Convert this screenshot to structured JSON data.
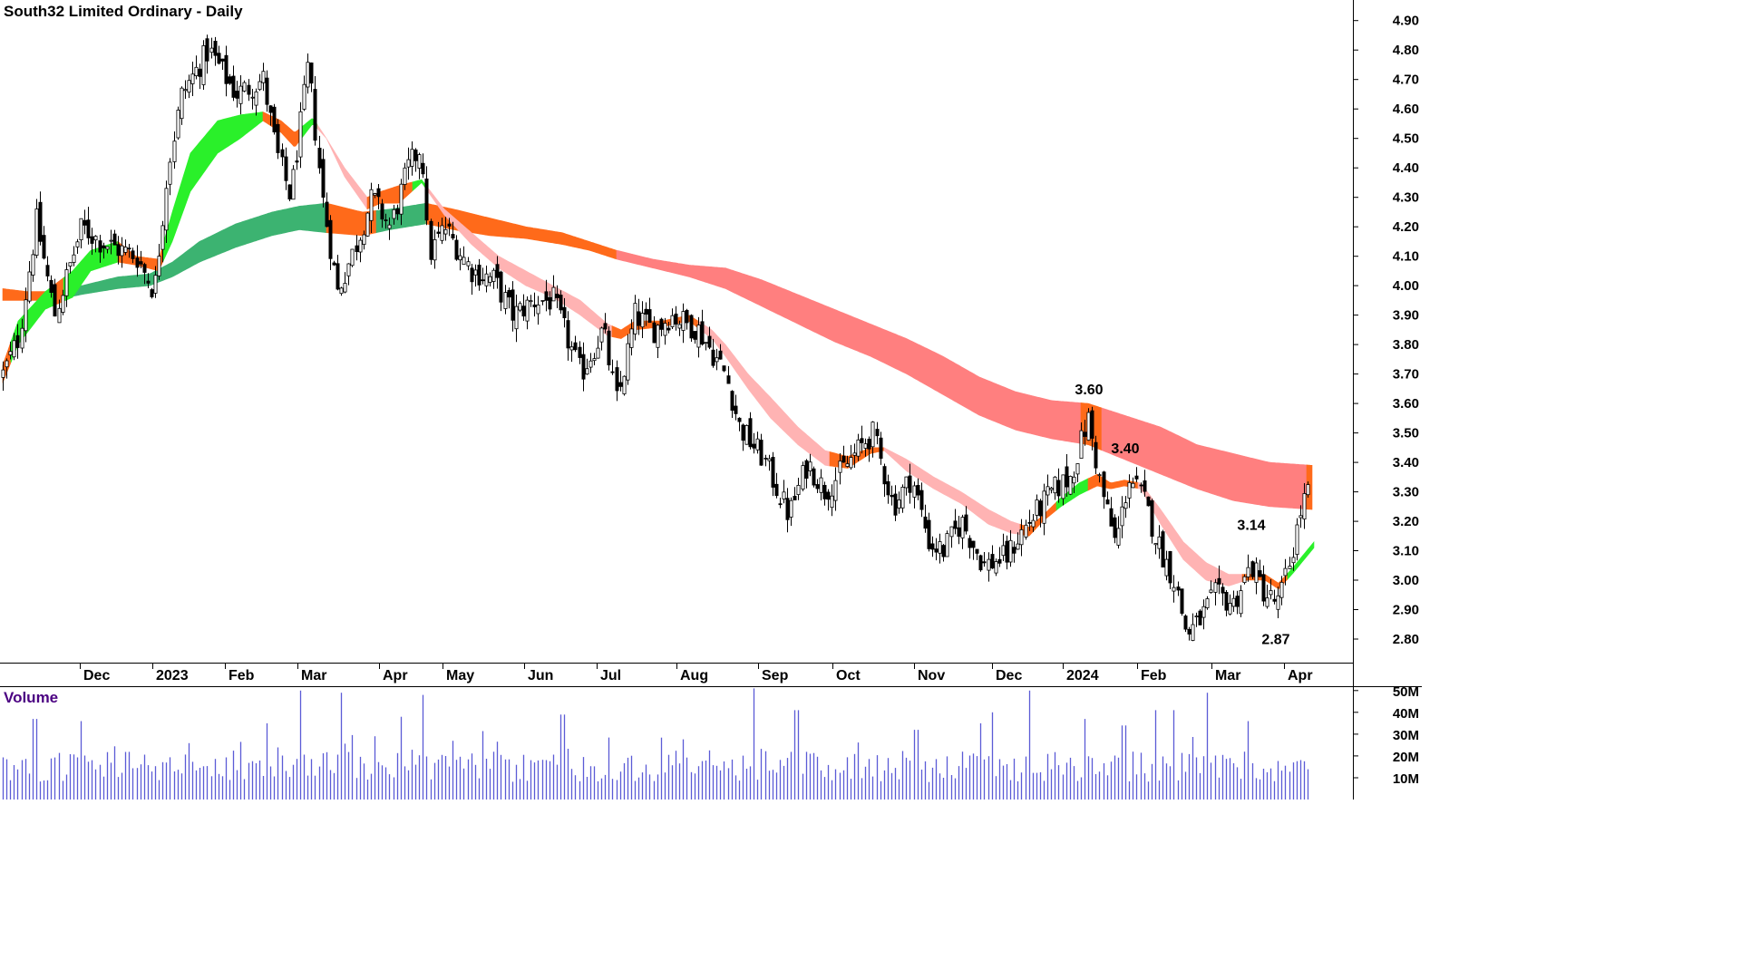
{
  "title": "South32 Limited Ordinary - Daily",
  "colors": {
    "fast_up": "#2af02a",
    "fast_down": "#ffb3b3",
    "mixed": "#ff6a1a",
    "slow_up": "#3cb371",
    "slow_down": "#ff7f7f",
    "volume": "#5b5bd6",
    "volume_title": "#4b0082"
  },
  "chart_data": [
    {
      "type": "candlestick",
      "title": "South32 Limited Ordinary - Daily",
      "ylim": [
        2.72,
        4.97
      ],
      "yticks": [
        2.8,
        2.9,
        3.0,
        3.1,
        3.2,
        3.3,
        3.4,
        3.5,
        3.6,
        3.7,
        3.8,
        3.9,
        4.0,
        4.1,
        4.2,
        4.3,
        4.4,
        4.5,
        4.6,
        4.7,
        4.8,
        4.9
      ],
      "month_labels": [
        "Dec",
        "2023",
        "Feb",
        "Mar",
        "Apr",
        "May",
        "Jun",
        "Jul",
        "Aug",
        "Sep",
        "Oct",
        "Nov",
        "Dec",
        "2024",
        "Feb",
        "Mar",
        "Apr"
      ],
      "month_ticks": [
        88,
        168,
        248,
        328,
        418,
        488,
        578,
        658,
        746,
        836,
        918,
        1008,
        1094,
        1172,
        1254,
        1336,
        1416
      ],
      "annotations": [
        {
          "label": "3.60",
          "x": 1201,
          "value": 3.6
        },
        {
          "label": "3.40",
          "x": 1241,
          "value": 3.4
        },
        {
          "label": "3.14",
          "x": 1380,
          "value": 3.14
        },
        {
          "label": "2.87",
          "x": 1407,
          "value": 2.87
        }
      ],
      "close_anchors": [
        [
          3,
          3.7
        ],
        [
          20,
          3.82
        ],
        [
          40,
          4.22
        ],
        [
          60,
          3.9
        ],
        [
          90,
          4.2
        ],
        [
          110,
          4.15
        ],
        [
          150,
          4.1
        ],
        [
          170,
          3.98
        ],
        [
          185,
          4.4
        ],
        [
          200,
          4.65
        ],
        [
          230,
          4.8
        ],
        [
          260,
          4.65
        ],
        [
          290,
          4.7
        ],
        [
          305,
          4.45
        ],
        [
          320,
          4.3
        ],
        [
          340,
          4.75
        ],
        [
          355,
          4.3
        ],
        [
          372,
          3.98
        ],
        [
          390,
          4.12
        ],
        [
          410,
          4.3
        ],
        [
          430,
          4.2
        ],
        [
          450,
          4.4
        ],
        [
          465,
          4.48
        ],
        [
          472,
          4.1
        ],
        [
          490,
          4.2
        ],
        [
          520,
          4.05
        ],
        [
          545,
          4.02
        ],
        [
          565,
          3.9
        ],
        [
          590,
          3.95
        ],
        [
          610,
          3.95
        ],
        [
          640,
          3.7
        ],
        [
          665,
          3.85
        ],
        [
          680,
          3.6
        ],
        [
          700,
          3.9
        ],
        [
          720,
          3.85
        ],
        [
          740,
          3.9
        ],
        [
          770,
          3.85
        ],
        [
          800,
          3.7
        ],
        [
          815,
          3.52
        ],
        [
          840,
          3.42
        ],
        [
          870,
          3.22
        ],
        [
          890,
          3.4
        ],
        [
          910,
          3.3
        ],
        [
          935,
          3.4
        ],
        [
          962,
          3.5
        ],
        [
          985,
          3.25
        ],
        [
          1005,
          3.35
        ],
        [
          1025,
          3.12
        ],
        [
          1040,
          3.1
        ],
        [
          1060,
          3.2
        ],
        [
          1085,
          3.05
        ],
        [
          1110,
          3.08
        ],
        [
          1130,
          3.18
        ],
        [
          1160,
          3.3
        ],
        [
          1180,
          3.35
        ],
        [
          1200,
          3.55
        ],
        [
          1215,
          3.3
        ],
        [
          1230,
          3.12
        ],
        [
          1245,
          3.35
        ],
        [
          1260,
          3.28
        ],
        [
          1280,
          3.1
        ],
        [
          1295,
          3.0
        ],
        [
          1308,
          2.82
        ],
        [
          1320,
          2.85
        ],
        [
          1340,
          2.95
        ],
        [
          1360,
          2.92
        ],
        [
          1380,
          3.05
        ],
        [
          1395,
          2.95
        ],
        [
          1410,
          2.92
        ],
        [
          1425,
          3.1
        ],
        [
          1435,
          3.25
        ],
        [
          1446,
          3.32
        ]
      ],
      "fast_band_anchors": [
        [
          3,
          3.67,
          3.73
        ],
        [
          20,
          3.8,
          3.88
        ],
        [
          50,
          3.92,
          3.98
        ],
        [
          80,
          3.96,
          4.05
        ],
        [
          100,
          4.05,
          4.12
        ],
        [
          130,
          4.08,
          4.15
        ],
        [
          150,
          4.07,
          4.1
        ],
        [
          175,
          4.05,
          4.09
        ],
        [
          190,
          4.15,
          4.25
        ],
        [
          210,
          4.32,
          4.45
        ],
        [
          240,
          4.45,
          4.56
        ],
        [
          265,
          4.5,
          4.58
        ],
        [
          290,
          4.56,
          4.59
        ],
        [
          310,
          4.52,
          4.56
        ],
        [
          325,
          4.47,
          4.52
        ],
        [
          345,
          4.55,
          4.57
        ],
        [
          360,
          4.5,
          4.5
        ],
        [
          380,
          4.37,
          4.4
        ],
        [
          405,
          4.26,
          4.3
        ],
        [
          420,
          4.28,
          4.32
        ],
        [
          440,
          4.28,
          4.34
        ],
        [
          465,
          4.35,
          4.36
        ],
        [
          490,
          4.24,
          4.26
        ],
        [
          520,
          4.14,
          4.18
        ],
        [
          550,
          4.06,
          4.1
        ],
        [
          580,
          4.0,
          4.05
        ],
        [
          610,
          3.96,
          4.0
        ],
        [
          640,
          3.9,
          3.95
        ],
        [
          670,
          3.83,
          3.87
        ],
        [
          685,
          3.82,
          3.85
        ],
        [
          700,
          3.85,
          3.88
        ],
        [
          730,
          3.86,
          3.88
        ],
        [
          760,
          3.88,
          3.9
        ],
        [
          785,
          3.82,
          3.85
        ],
        [
          800,
          3.76,
          3.8
        ],
        [
          825,
          3.65,
          3.7
        ],
        [
          850,
          3.55,
          3.62
        ],
        [
          880,
          3.46,
          3.52
        ],
        [
          910,
          3.39,
          3.44
        ],
        [
          935,
          3.38,
          3.42
        ],
        [
          960,
          3.43,
          3.45
        ],
        [
          975,
          3.44,
          3.45
        ],
        [
          1000,
          3.37,
          3.41
        ],
        [
          1030,
          3.31,
          3.35
        ],
        [
          1060,
          3.26,
          3.3
        ],
        [
          1090,
          3.19,
          3.24
        ],
        [
          1115,
          3.16,
          3.2
        ],
        [
          1135,
          3.15,
          3.18
        ],
        [
          1150,
          3.2,
          3.22
        ],
        [
          1170,
          3.25,
          3.28
        ],
        [
          1190,
          3.29,
          3.33
        ],
        [
          1210,
          3.32,
          3.36
        ],
        [
          1225,
          3.31,
          3.33
        ],
        [
          1240,
          3.32,
          3.34
        ],
        [
          1258,
          3.31,
          3.33
        ],
        [
          1280,
          3.19,
          3.24
        ],
        [
          1305,
          3.07,
          3.13
        ],
        [
          1330,
          3.0,
          3.06
        ],
        [
          1355,
          2.98,
          3.02
        ],
        [
          1375,
          3.0,
          3.02
        ],
        [
          1395,
          3.0,
          3.02
        ],
        [
          1410,
          2.97,
          2.99
        ],
        [
          1425,
          3.02,
          3.04
        ],
        [
          1449,
          3.11,
          3.13
        ]
      ],
      "slow_band_anchors": [
        [
          3,
          3.95,
          3.99
        ],
        [
          30,
          3.95,
          3.98
        ],
        [
          60,
          3.95,
          3.98
        ],
        [
          90,
          3.97,
          4.0
        ],
        [
          130,
          3.99,
          4.03
        ],
        [
          165,
          4.0,
          4.04
        ],
        [
          190,
          4.03,
          4.08
        ],
        [
          220,
          4.08,
          4.15
        ],
        [
          260,
          4.13,
          4.21
        ],
        [
          300,
          4.17,
          4.25
        ],
        [
          330,
          4.19,
          4.27
        ],
        [
          360,
          4.18,
          4.28
        ],
        [
          400,
          4.17,
          4.25
        ],
        [
          430,
          4.19,
          4.26
        ],
        [
          470,
          4.21,
          4.28
        ],
        [
          500,
          4.19,
          4.26
        ],
        [
          540,
          4.17,
          4.23
        ],
        [
          580,
          4.16,
          4.2
        ],
        [
          620,
          4.14,
          4.18
        ],
        [
          650,
          4.12,
          4.15
        ],
        [
          680,
          4.09,
          4.12
        ],
        [
          720,
          4.06,
          4.09
        ],
        [
          760,
          4.03,
          4.07
        ],
        [
          800,
          3.99,
          4.06
        ],
        [
          840,
          3.93,
          4.02
        ],
        [
          880,
          3.87,
          3.97
        ],
        [
          920,
          3.81,
          3.92
        ],
        [
          960,
          3.76,
          3.87
        ],
        [
          1000,
          3.7,
          3.82
        ],
        [
          1040,
          3.63,
          3.76
        ],
        [
          1080,
          3.56,
          3.69
        ],
        [
          1120,
          3.51,
          3.64
        ],
        [
          1160,
          3.48,
          3.61
        ],
        [
          1200,
          3.46,
          3.6
        ],
        [
          1240,
          3.41,
          3.56
        ],
        [
          1280,
          3.36,
          3.52
        ],
        [
          1320,
          3.31,
          3.46
        ],
        [
          1360,
          3.27,
          3.43
        ],
        [
          1400,
          3.25,
          3.4
        ],
        [
          1447,
          3.24,
          3.39
        ]
      ],
      "fast_segments": [
        [
          3,
          12,
          "mixed"
        ],
        [
          12,
          60,
          "fast_up"
        ],
        [
          60,
          70,
          "mixed"
        ],
        [
          70,
          130,
          "fast_up"
        ],
        [
          130,
          180,
          "mixed"
        ],
        [
          180,
          290,
          "fast_up"
        ],
        [
          290,
          330,
          "mixed"
        ],
        [
          330,
          350,
          "fast_up"
        ],
        [
          350,
          405,
          "fast_down"
        ],
        [
          405,
          455,
          "mixed"
        ],
        [
          455,
          470,
          "fast_up"
        ],
        [
          470,
          675,
          "fast_down"
        ],
        [
          675,
          770,
          "mixed"
        ],
        [
          770,
          915,
          "fast_down"
        ],
        [
          915,
          975,
          "mixed"
        ],
        [
          975,
          1125,
          "fast_down"
        ],
        [
          1125,
          1165,
          "mixed"
        ],
        [
          1165,
          1200,
          "fast_up"
        ],
        [
          1200,
          1255,
          "mixed"
        ],
        [
          1255,
          1370,
          "fast_down"
        ],
        [
          1370,
          1420,
          "mixed"
        ],
        [
          1420,
          1449,
          "fast_up"
        ]
      ],
      "slow_segments": [
        [
          3,
          60,
          "mixed"
        ],
        [
          60,
          170,
          "slow_up"
        ],
        [
          170,
          360,
          "slow_up"
        ],
        [
          360,
          415,
          "mixed"
        ],
        [
          415,
          470,
          "slow_up"
        ],
        [
          470,
          500,
          "mixed"
        ],
        [
          500,
          680,
          "mixed"
        ],
        [
          680,
          1192,
          "slow_down"
        ],
        [
          1192,
          1215,
          "mixed"
        ],
        [
          1215,
          1441,
          "slow_down"
        ],
        [
          1441,
          1447,
          "mixed"
        ]
      ]
    },
    {
      "type": "bar",
      "title": "Volume",
      "ylim": [
        0,
        52
      ],
      "yticks": [
        10,
        20,
        30,
        40,
        50
      ],
      "ytick_labels": [
        "10M",
        "20M",
        "30M",
        "40M",
        "50M"
      ],
      "unit": "M",
      "spikes": [
        [
          332,
          50
        ],
        [
          376,
          49
        ],
        [
          467,
          48
        ],
        [
          831,
          51
        ],
        [
          1136,
          50
        ],
        [
          1332,
          49
        ],
        [
          1295,
          41
        ],
        [
          1093,
          40
        ],
        [
          1195,
          37
        ],
        [
          1273,
          41
        ],
        [
          878,
          41
        ],
        [
          620,
          39
        ],
        [
          38,
          37
        ],
        [
          90,
          36
        ],
        [
          442,
          38
        ],
        [
          1375,
          36
        ],
        [
          1239,
          34
        ],
        [
          295,
          35
        ],
        [
          1080,
          35
        ],
        [
          1010,
          32
        ]
      ]
    }
  ]
}
